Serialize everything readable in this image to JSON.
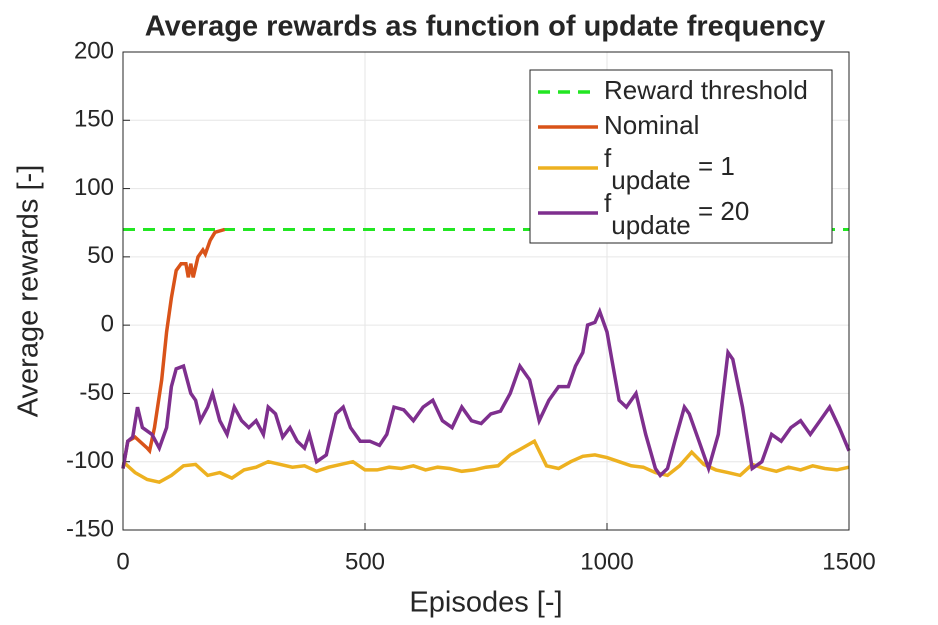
{
  "chart_data": {
    "type": "line",
    "title": "Average rewards as function of update frequency",
    "xlabel": "Episodes [-]",
    "ylabel": "Average rewards [-]",
    "xlim": [
      0,
      1500
    ],
    "ylim": [
      -150,
      200
    ],
    "xticks": [
      0,
      500,
      1000,
      1500
    ],
    "yticks": [
      -150,
      -100,
      -50,
      0,
      50,
      100,
      150,
      200
    ],
    "grid": true,
    "legend": "northeast",
    "series": [
      {
        "name": "Reward threshold",
        "color": "#22e622",
        "dashed": true,
        "x": [
          0,
          1500
        ],
        "values": [
          70,
          70
        ]
      },
      {
        "name": "Nominal",
        "color": "#d95319",
        "x": [
          0,
          10,
          25,
          50,
          55,
          65,
          80,
          90,
          100,
          110,
          120,
          130,
          135,
          140,
          145,
          155,
          165,
          170,
          180,
          190,
          210
        ],
        "values": [
          -105,
          -85,
          -82,
          -90,
          -92,
          -75,
          -40,
          -5,
          20,
          40,
          45,
          45,
          35,
          45,
          35,
          50,
          55,
          52,
          62,
          68,
          70
        ]
      },
      {
        "name": "f_{update} = 1",
        "color": "#edb120",
        "x": [
          0,
          25,
          50,
          75,
          100,
          125,
          150,
          175,
          200,
          225,
          250,
          275,
          300,
          325,
          350,
          375,
          400,
          425,
          450,
          475,
          500,
          525,
          550,
          575,
          600,
          625,
          650,
          675,
          700,
          725,
          750,
          775,
          800,
          825,
          850,
          875,
          900,
          925,
          950,
          975,
          1000,
          1025,
          1050,
          1075,
          1100,
          1125,
          1150,
          1175,
          1200,
          1225,
          1250,
          1275,
          1300,
          1325,
          1350,
          1375,
          1400,
          1425,
          1450,
          1475,
          1500
        ],
        "values": [
          -100,
          -108,
          -113,
          -115,
          -110,
          -103,
          -102,
          -110,
          -108,
          -112,
          -106,
          -104,
          -100,
          -102,
          -104,
          -103,
          -107,
          -104,
          -102,
          -100,
          -106,
          -106,
          -104,
          -105,
          -103,
          -106,
          -104,
          -105,
          -107,
          -106,
          -104,
          -103,
          -95,
          -90,
          -85,
          -103,
          -105,
          -100,
          -96,
          -95,
          -97,
          -100,
          -103,
          -104,
          -108,
          -110,
          -103,
          -93,
          -102,
          -106,
          -108,
          -110,
          -102,
          -105,
          -107,
          -104,
          -106,
          -103,
          -105,
          -106,
          -104
        ]
      },
      {
        "name": "f_{update} = 20",
        "color": "#7e2f8e",
        "x": [
          0,
          10,
          20,
          30,
          40,
          60,
          75,
          90,
          100,
          110,
          125,
          140,
          150,
          160,
          175,
          185,
          200,
          215,
          230,
          245,
          260,
          275,
          290,
          300,
          315,
          330,
          345,
          360,
          375,
          385,
          400,
          420,
          440,
          455,
          470,
          490,
          510,
          530,
          545,
          560,
          580,
          600,
          620,
          640,
          660,
          680,
          700,
          720,
          740,
          760,
          780,
          800,
          820,
          840,
          860,
          880,
          900,
          920,
          935,
          950,
          960,
          975,
          985,
          1000,
          1010,
          1025,
          1040,
          1060,
          1080,
          1100,
          1110,
          1125,
          1140,
          1160,
          1170,
          1190,
          1210,
          1230,
          1250,
          1260,
          1280,
          1300,
          1320,
          1340,
          1360,
          1380,
          1400,
          1420,
          1440,
          1460,
          1480,
          1500
        ],
        "values": [
          -105,
          -85,
          -82,
          -60,
          -75,
          -80,
          -90,
          -75,
          -45,
          -32,
          -30,
          -50,
          -55,
          -70,
          -60,
          -50,
          -70,
          -80,
          -60,
          -70,
          -75,
          -70,
          -80,
          -60,
          -65,
          -82,
          -75,
          -85,
          -90,
          -80,
          -100,
          -95,
          -65,
          -60,
          -75,
          -85,
          -85,
          -88,
          -80,
          -60,
          -62,
          -70,
          -60,
          -55,
          -70,
          -75,
          -60,
          -70,
          -72,
          -65,
          -63,
          -50,
          -30,
          -40,
          -70,
          -55,
          -45,
          -45,
          -30,
          -20,
          0,
          2,
          10,
          -5,
          -25,
          -55,
          -60,
          -50,
          -80,
          -105,
          -110,
          -105,
          -85,
          -60,
          -65,
          -85,
          -105,
          -80,
          -20,
          -25,
          -60,
          -105,
          -100,
          -80,
          -85,
          -75,
          -70,
          -80,
          -70,
          -60,
          -75,
          -92
        ]
      }
    ]
  }
}
